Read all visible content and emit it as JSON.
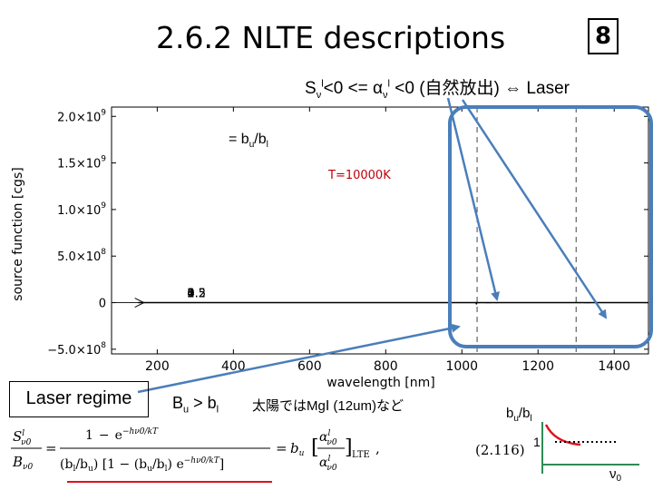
{
  "slide": {
    "title": "2.6.2 NLTE descriptions",
    "number": "8"
  },
  "laser_condition": {
    "s": "S",
    "s_sub": "ν",
    "s_sup": "l",
    "mid": "<0 <= α",
    "alpha_sub": "ν",
    "alpha_sup": "l",
    "tail": " <0 (自然放出)",
    "arrow": "⇔",
    "laser": " Laser"
  },
  "chart_data": {
    "type": "line",
    "xlabel": "wavelength [nm]",
    "ylabel": "source function [cgs]",
    "xlim": [
      80,
      1490
    ],
    "ylim": [
      -550000000,
      2100000000
    ],
    "xticks": [
      200,
      400,
      600,
      800,
      1000,
      1200,
      1400
    ],
    "xtick_labels": [
      "200",
      "400",
      "600",
      "800",
      "1000",
      "1200",
      "1400"
    ],
    "yticks": [
      2000000000,
      1500000000,
      1000000000,
      500000000,
      0,
      -500000000
    ],
    "ytick_labels": [
      {
        "mant": "2.0×10",
        "exp": "9"
      },
      {
        "mant": "1.5×10",
        "exp": "9"
      },
      {
        "mant": "1.0×10",
        "exp": "9"
      },
      {
        "mant": "5.0×10",
        "exp": "8"
      },
      {
        "mant": "0",
        "exp": ""
      },
      {
        "mant": "−5.0×10",
        "exp": "8"
      }
    ],
    "temperature_label": "T=10000K",
    "ratio_label": "= b",
    "ratio_u": "u",
    "ratio_mid": "/b",
    "ratio_l": "l",
    "vertical_lines_nm": [
      1040,
      1300
    ],
    "series": [
      {
        "name": "4",
        "ratio": 4.0,
        "style": "dashed"
      },
      {
        "name": "3",
        "ratio": 3.0,
        "style": "dashed"
      },
      {
        "name": "2",
        "ratio": 2.0,
        "style": "dashed"
      },
      {
        "name": "1",
        "ratio": 1.0,
        "style": "solid"
      },
      {
        "name": "0.5",
        "ratio": 0.5,
        "style": "dashed"
      },
      {
        "name": "0.2",
        "ratio": 0.2,
        "style": "dashed"
      }
    ]
  },
  "laser_regime": "Laser regime",
  "bu_gt_bl": {
    "b1": "B",
    "s1": "u",
    "gt": " > b",
    "s2": "l"
  },
  "sun_note": "太陽ではMgⅠ (12um)など",
  "inset": {
    "label_b": "b",
    "label_u": "u",
    "label_mid": "/b",
    "label_l": "l",
    "one": "1",
    "nu0": "ν",
    "nu0_sub": "0"
  },
  "equation": {
    "number": "(2.116)",
    "lhs_num": "S",
    "lhs_den": "B",
    "sup_l": "l",
    "sub_nu0": "ν0",
    "exp_term": "e",
    "exp_arg": "−hν0/kT",
    "one": "1",
    "minus": "−",
    "den_left": "(b",
    "den_ratio": "l",
    "den_slash": "/b",
    "den_u": "u",
    "den_mid": ") [1 − (b",
    "den_mid2": "u",
    "den_mid3": "/b",
    "den_mid4": "l",
    "den_end": ") e",
    "den_close": "]",
    "eq": "=",
    "b": "b",
    "bu_sub": "u",
    "bracket_alpha": "α",
    "lte": "LTE",
    "comma": ","
  },
  "colors": {
    "highlight": "#4a7ebb",
    "arrow": "#4a7ebb",
    "temperature": "#c0000a",
    "underline": "#e0101e",
    "inset_curve": "#e0101e",
    "inset_axes": "#2e8b57"
  }
}
